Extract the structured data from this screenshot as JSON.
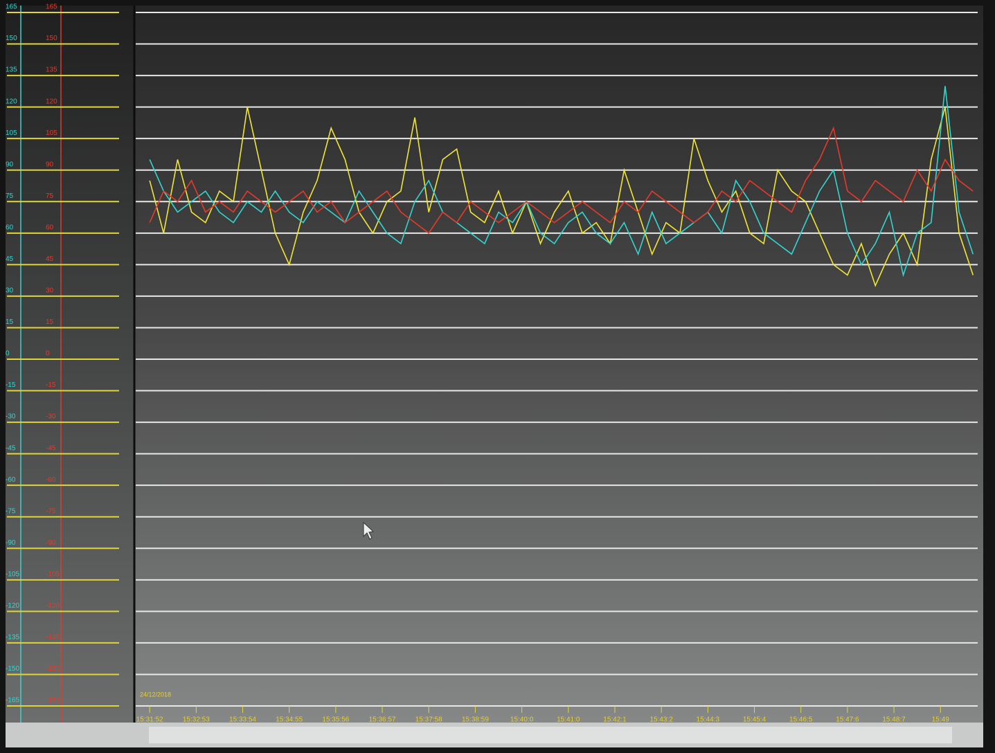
{
  "chart_data": {
    "type": "line",
    "date_label": "24/12/2018",
    "x": [
      0,
      0.3,
      0.6,
      0.9,
      1.2,
      1.5,
      1.8,
      2.1,
      2.4,
      2.7,
      3,
      3.3,
      3.6,
      3.9,
      4.2,
      4.5,
      4.8,
      5.1,
      5.4,
      5.7,
      6,
      6.3,
      6.6,
      6.9,
      7.2,
      7.5,
      7.8,
      8.1,
      8.4,
      8.7,
      9,
      9.3,
      9.6,
      9.9,
      10.2,
      10.5,
      10.8,
      11.1,
      11.4,
      11.7,
      12,
      12.3,
      12.6,
      12.9,
      13.2,
      13.5,
      13.8,
      14.1,
      14.4,
      14.7,
      15,
      15.3,
      15.6,
      15.9,
      16.2,
      16.5,
      16.8,
      17.1,
      17.4,
      17.7
    ],
    "xlim": [
      -0.3,
      17.8
    ],
    "xticks": [
      {
        "value": 0,
        "label": "15:31:52"
      },
      {
        "value": 1,
        "label": "15:32:53"
      },
      {
        "value": 2,
        "label": "15:33:54"
      },
      {
        "value": 3,
        "label": "15:34:55"
      },
      {
        "value": 4,
        "label": "15:35:56"
      },
      {
        "value": 5,
        "label": "15:36:57"
      },
      {
        "value": 6,
        "label": "15:37:58"
      },
      {
        "value": 7,
        "label": "15:38:59"
      },
      {
        "value": 8,
        "label": "15:40:0"
      },
      {
        "value": 9,
        "label": "15:41:0"
      },
      {
        "value": 10,
        "label": "15:42:1"
      },
      {
        "value": 11,
        "label": "15:43:2"
      },
      {
        "value": 12,
        "label": "15:44:3"
      },
      {
        "value": 13,
        "label": "15:45:4"
      },
      {
        "value": 14,
        "label": "15:46:5"
      },
      {
        "value": 15,
        "label": "15:47:6"
      },
      {
        "value": 16,
        "label": "15:48:7"
      },
      {
        "value": 17,
        "label": "15:49"
      }
    ],
    "ylim": [
      -165,
      165
    ],
    "yticks": [
      165,
      150,
      135,
      120,
      105,
      90,
      75,
      60,
      45,
      30,
      15,
      0,
      -15,
      -30,
      -45,
      -60,
      -75,
      -90,
      -105,
      -120,
      -135,
      -150,
      -165
    ],
    "grid": true,
    "series": [
      {
        "color": "#f2e635",
        "values": [
          85,
          60,
          95,
          70,
          65,
          80,
          75,
          120,
          90,
          60,
          45,
          70,
          85,
          110,
          95,
          70,
          60,
          75,
          80,
          115,
          70,
          95,
          100,
          70,
          65,
          80,
          60,
          75,
          55,
          70,
          80,
          60,
          65,
          55,
          90,
          70,
          50,
          65,
          60,
          105,
          85,
          70,
          80,
          60,
          55,
          90,
          80,
          75,
          60,
          45,
          40,
          55,
          35,
          50,
          60,
          45,
          95,
          120,
          60,
          40
        ]
      },
      {
        "color": "#33d6d0",
        "values": [
          95,
          80,
          70,
          75,
          80,
          70,
          65,
          75,
          70,
          80,
          70,
          65,
          75,
          70,
          65,
          80,
          70,
          60,
          55,
          75,
          85,
          70,
          65,
          60,
          55,
          70,
          65,
          75,
          60,
          55,
          65,
          70,
          60,
          55,
          65,
          50,
          70,
          55,
          60,
          65,
          70,
          60,
          85,
          75,
          60,
          55,
          50,
          65,
          80,
          90,
          60,
          45,
          55,
          70,
          40,
          60,
          65,
          130,
          70,
          50
        ]
      },
      {
        "color": "#e8392a",
        "values": [
          65,
          80,
          75,
          85,
          70,
          75,
          70,
          80,
          75,
          70,
          75,
          80,
          70,
          75,
          65,
          70,
          75,
          80,
          70,
          65,
          60,
          70,
          65,
          75,
          70,
          65,
          70,
          75,
          70,
          65,
          70,
          75,
          70,
          65,
          75,
          70,
          80,
          75,
          70,
          65,
          70,
          80,
          75,
          85,
          80,
          75,
          70,
          85,
          95,
          110,
          80,
          75,
          85,
          80,
          75,
          90,
          80,
          95,
          85,
          80
        ]
      }
    ]
  }
}
